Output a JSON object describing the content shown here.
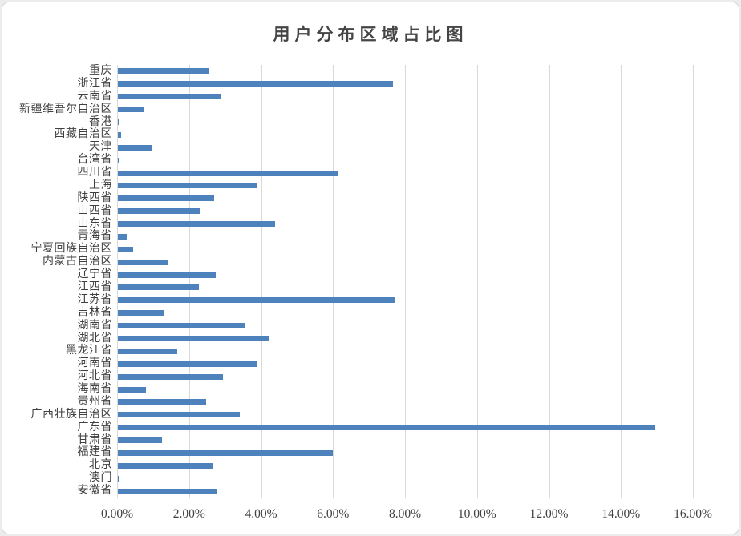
{
  "page": {
    "background_color": "#ececec",
    "frame_color": "#ffffff",
    "frame_border_color": "#d6d6d6"
  },
  "chart_data": {
    "type": "bar",
    "orientation": "horizontal",
    "title": "用户分布区域占比图",
    "categories": [
      "重庆",
      "浙江省",
      "云南省",
      "新疆维吾尔自治区",
      "香港",
      "西藏自治区",
      "天津",
      "台湾省",
      "四川省",
      "上海",
      "陕西省",
      "山西省",
      "山东省",
      "青海省",
      "宁夏回族自治区",
      "内蒙古自治区",
      "辽宁省",
      "江西省",
      "江苏省",
      "吉林省",
      "湖南省",
      "湖北省",
      "黑龙江省",
      "河南省",
      "河北省",
      "海南省",
      "贵州省",
      "广西壮族自治区",
      "广东省",
      "甘肃省",
      "福建省",
      "北京",
      "澳门",
      "安徽省"
    ],
    "values": [
      2.55,
      7.65,
      2.87,
      0.71,
      0.03,
      0.08,
      0.96,
      0.01,
      6.12,
      3.86,
      2.67,
      2.28,
      4.37,
      0.25,
      0.42,
      1.4,
      2.72,
      2.24,
      7.72,
      1.3,
      3.52,
      4.2,
      1.66,
      3.85,
      2.92,
      0.77,
      2.46,
      3.39,
      14.93,
      1.23,
      5.97,
      2.64,
      0.01,
      2.73
    ],
    "value_unit": "%",
    "xlabel": "",
    "ylabel": "",
    "xlim": [
      0,
      16
    ],
    "x_ticks": [
      "0.00%",
      "2.00%",
      "4.00%",
      "6.00%",
      "8.00%",
      "10.00%",
      "12.00%",
      "14.00%",
      "16.00%"
    ],
    "grid": true,
    "legend": "none",
    "bar_color": "#4d82bc",
    "gridline_color": "#d9d9d9",
    "text_color": "#404040",
    "title_color": "#454545"
  }
}
